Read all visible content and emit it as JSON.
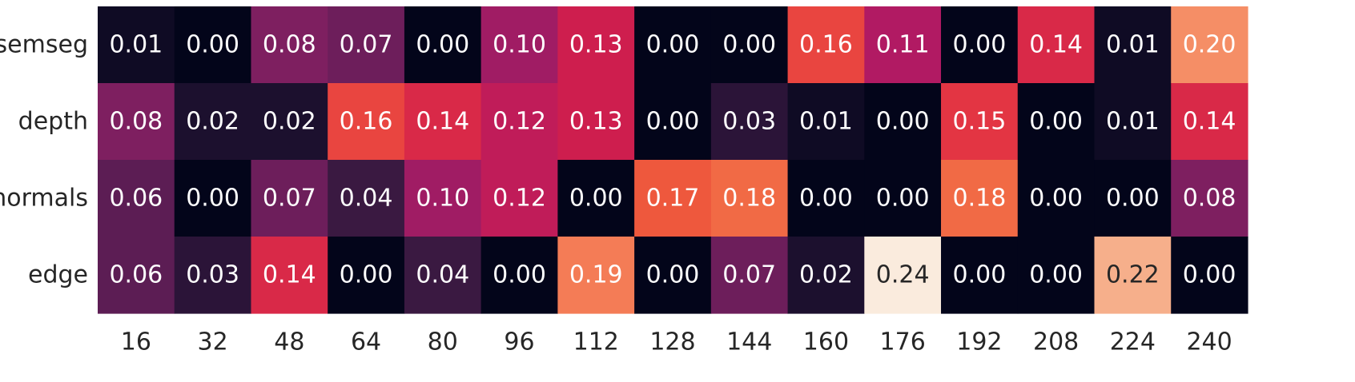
{
  "chart_data": {
    "type": "heatmap",
    "title": "",
    "xlabel": "",
    "ylabel": "",
    "colormap": "rocket",
    "value_range": [
      0,
      0.24
    ],
    "colorbar": false,
    "grid": false,
    "columns": [
      "16",
      "32",
      "48",
      "64",
      "80",
      "96",
      "112",
      "128",
      "144",
      "160",
      "176",
      "192",
      "208",
      "224",
      "240"
    ],
    "rows": [
      "semseg",
      "depth",
      "normals",
      "edge"
    ],
    "values": [
      [
        0.01,
        0.0,
        0.08,
        0.07,
        0.0,
        0.1,
        0.13,
        0.0,
        0.0,
        0.16,
        0.11,
        0.0,
        0.14,
        0.01,
        0.2
      ],
      [
        0.08,
        0.02,
        0.02,
        0.16,
        0.14,
        0.12,
        0.13,
        0.0,
        0.03,
        0.01,
        0.0,
        0.15,
        0.0,
        0.01,
        0.14
      ],
      [
        0.06,
        0.0,
        0.07,
        0.04,
        0.1,
        0.12,
        0.0,
        0.17,
        0.18,
        0.0,
        0.0,
        0.18,
        0.0,
        0.0,
        0.08
      ],
      [
        0.06,
        0.03,
        0.14,
        0.0,
        0.04,
        0.0,
        0.19,
        0.0,
        0.07,
        0.02,
        0.24,
        0.0,
        0.0,
        0.22,
        0.0
      ]
    ],
    "cell_labels": [
      [
        "0.01",
        "0.00",
        "0.08",
        "0.07",
        "0.00",
        "0.10",
        "0.13",
        "0.00",
        "0.00",
        "0.16",
        "0.11",
        "0.00",
        "0.14",
        "0.01",
        "0.20"
      ],
      [
        "0.08",
        "0.02",
        "0.02",
        "0.16",
        "0.14",
        "0.12",
        "0.13",
        "0.00",
        "0.03",
        "0.01",
        "0.00",
        "0.15",
        "0.00",
        "0.01",
        "0.14"
      ],
      [
        "0.06",
        "0.00",
        "0.07",
        "0.04",
        "0.10",
        "0.12",
        "0.00",
        "0.17",
        "0.18",
        "0.00",
        "0.00",
        "0.18",
        "0.00",
        "0.00",
        "0.08"
      ],
      [
        "0.06",
        "0.03",
        "0.14",
        "0.00",
        "0.04",
        "0.00",
        "0.19",
        "0.00",
        "0.07",
        "0.02",
        "0.24",
        "0.00",
        "0.00",
        "0.22",
        "0.00"
      ]
    ],
    "colors": {
      "background": "#ffffff",
      "tick_label": "#262626",
      "annotation_light": "#ffffff",
      "annotation_dark": "#262626",
      "scale_stops": [
        "#03051a",
        "#1e1130",
        "#401a44",
        "#651e59",
        "#8a1f64",
        "#b01a64",
        "#cf1e4d",
        "#e63842",
        "#f0603c",
        "#f58860",
        "#f6aa83",
        "#faebdd"
      ]
    }
  }
}
